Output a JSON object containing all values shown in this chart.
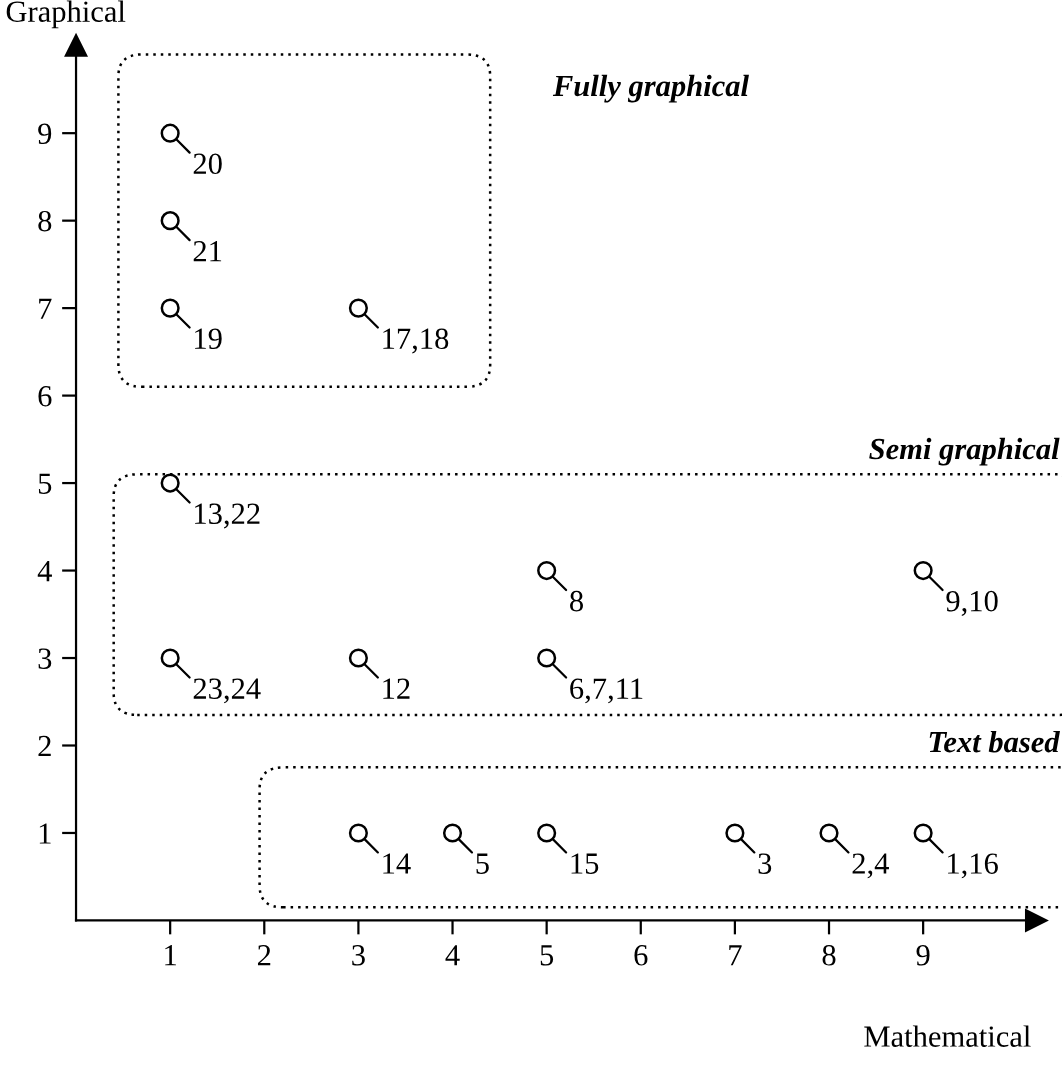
{
  "chart_data": {
    "type": "scatter",
    "xlabel": "Mathematical",
    "ylabel": "Graphical",
    "xlim": [
      0,
      10.2
    ],
    "ylim": [
      0,
      10
    ],
    "xticks": [
      1,
      2,
      3,
      4,
      5,
      6,
      7,
      8,
      9
    ],
    "yticks": [
      1,
      2,
      3,
      4,
      5,
      6,
      7,
      8,
      9
    ],
    "marker": "circle",
    "grid": false,
    "series": [
      {
        "color": "#000000",
        "x": [
          1,
          1,
          1,
          3,
          1,
          5,
          9,
          1,
          3,
          5,
          3,
          4,
          5,
          7,
          8,
          9
        ],
        "values": [
          9,
          8,
          7,
          7,
          5,
          4,
          4,
          3,
          3,
          3,
          1,
          1,
          1,
          1,
          1,
          1
        ]
      }
    ],
    "annotations": [
      "Fully graphical",
      "Semi graphical",
      "Text based",
      {
        "text": "20",
        "x": 1,
        "y": 9
      },
      {
        "text": "21",
        "x": 1,
        "y": 8
      },
      {
        "text": "19",
        "x": 1,
        "y": 7
      },
      {
        "text": "17,18",
        "x": 3,
        "y": 7
      },
      {
        "text": "13,22",
        "x": 1,
        "y": 5
      },
      {
        "text": "8",
        "x": 5,
        "y": 4
      },
      {
        "text": "9,10",
        "x": 9,
        "y": 4
      },
      {
        "text": "23,24",
        "x": 1,
        "y": 3
      },
      {
        "text": "12",
        "x": 3,
        "y": 3
      },
      {
        "text": "6,7,11",
        "x": 5,
        "y": 3
      },
      {
        "text": "14",
        "x": 3,
        "y": 1
      },
      {
        "text": "5",
        "x": 4,
        "y": 1
      },
      {
        "text": "15",
        "x": 5,
        "y": 1
      },
      {
        "text": "3",
        "x": 7,
        "y": 1
      },
      {
        "text": "2,4",
        "x": 8,
        "y": 1
      },
      {
        "text": "1,16",
        "x": 9,
        "y": 1
      }
    ]
  }
}
